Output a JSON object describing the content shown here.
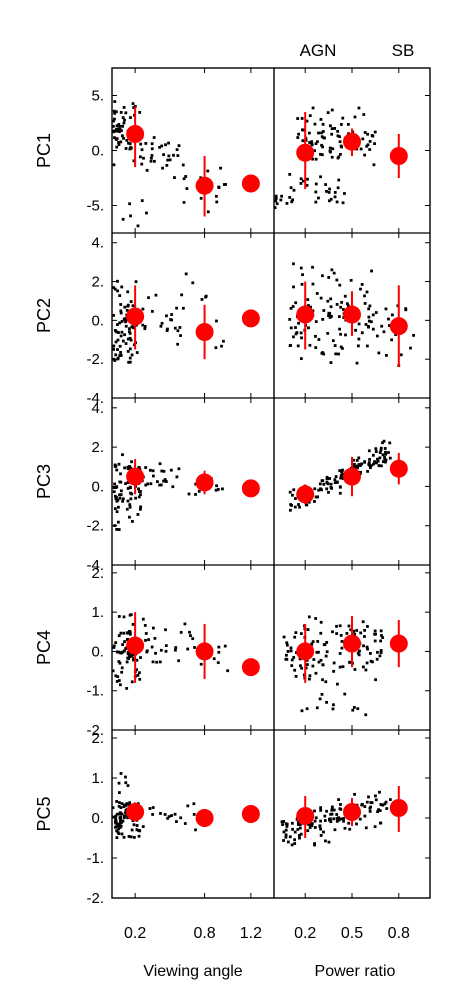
{
  "colors": {
    "points": "#000000",
    "means": "#ff0000",
    "frame": "#000000",
    "background": "#ffffff"
  },
  "column_top_labels": [
    "AGN",
    "SB"
  ],
  "x_labels": [
    "Viewing angle",
    "Power ratio"
  ],
  "chart_data": {
    "type": "scatter",
    "grid": false,
    "columns": [
      {
        "xlabel": "Viewing angle",
        "xlim": [
          0,
          1.4
        ],
        "ticks": [
          0.2,
          0.8,
          1.2
        ],
        "tick_labels": [
          "0.2",
          "0.8",
          "1.2"
        ]
      },
      {
        "xlabel": "Power ratio",
        "xlim": [
          0,
          1.0
        ],
        "ticks": [
          0.2,
          0.5,
          0.8
        ],
        "tick_labels": [
          "0.2",
          "0.5",
          "0.8"
        ]
      }
    ],
    "rows": [
      {
        "ylabel": "PC1",
        "ylim": [
          -7.5,
          7.5
        ],
        "yticks": [
          5,
          0,
          -5
        ],
        "ytick_labels": [
          "5.",
          "0.",
          "-5."
        ],
        "panels": [
          {
            "means": [
              {
                "x": 0.2,
                "y": 1.5,
                "lo": -1.5,
                "hi": 4.0
              },
              {
                "x": 0.8,
                "y": -3.2,
                "lo": -6.0,
                "hi": -0.5
              },
              {
                "x": 1.2,
                "y": -3.0,
                "lo": -3.5,
                "hi": -2.5
              }
            ],
            "scatter": {
              "seed": 11,
              "n": 110,
              "clusters": [
                {
                  "w": 0.55,
                  "x": [
                    0.0,
                    0.25
                  ],
                  "y": [
                    -1.5,
                    5.0
                  ]
                },
                {
                  "w": 0.25,
                  "x": [
                    0.25,
                    0.6
                  ],
                  "y": [
                    -3.0,
                    2.0
                  ]
                },
                {
                  "w": 0.15,
                  "x": [
                    0.6,
                    1.0
                  ],
                  "y": [
                    -6.0,
                    -1.0
                  ]
                },
                {
                  "w": 0.05,
                  "x": [
                    0.05,
                    0.3
                  ],
                  "y": [
                    -7.0,
                    -4.0
                  ]
                }
              ]
            }
          },
          {
            "means": [
              {
                "x": 0.2,
                "y": -0.2,
                "lo": -3.5,
                "hi": 3.5
              },
              {
                "x": 0.5,
                "y": 0.8,
                "lo": -0.5,
                "hi": 2.0
              },
              {
                "x": 0.8,
                "y": -0.5,
                "lo": -2.5,
                "hi": 1.5
              }
            ],
            "scatter": {
              "seed": 12,
              "n": 130,
              "clusters": [
                {
                  "w": 0.7,
                  "x": [
                    0.15,
                    0.65
                  ],
                  "y": [
                    -2.0,
                    4.0
                  ]
                },
                {
                  "w": 0.2,
                  "x": [
                    0.1,
                    0.5
                  ],
                  "y": [
                    -5.0,
                    -2.0
                  ]
                },
                {
                  "w": 0.1,
                  "x": [
                    0.0,
                    0.15
                  ],
                  "y": [
                    -5.5,
                    -4.0
                  ]
                }
              ]
            }
          }
        ]
      },
      {
        "ylabel": "PC2",
        "ylim": [
          -4,
          4.5
        ],
        "yticks": [
          4,
          2,
          0,
          -2,
          -4
        ],
        "ytick_labels": [
          "4.",
          "2.",
          "0.",
          "-2.",
          "-4."
        ],
        "panels": [
          {
            "means": [
              {
                "x": 0.2,
                "y": 0.2,
                "lo": -1.5,
                "hi": 1.8
              },
              {
                "x": 0.8,
                "y": -0.6,
                "lo": -2.0,
                "hi": 0.8
              },
              {
                "x": 1.2,
                "y": 0.1,
                "lo": -0.2,
                "hi": 0.4
              }
            ],
            "scatter": {
              "seed": 21,
              "n": 110,
              "clusters": [
                {
                  "w": 0.7,
                  "x": [
                    0.0,
                    0.22
                  ],
                  "y": [
                    -3.0,
                    2.5
                  ]
                },
                {
                  "w": 0.2,
                  "x": [
                    0.22,
                    0.6
                  ],
                  "y": [
                    -1.5,
                    1.5
                  ]
                },
                {
                  "w": 0.1,
                  "x": [
                    0.6,
                    1.0
                  ],
                  "y": [
                    -2.0,
                    3.0
                  ]
                }
              ]
            }
          },
          {
            "means": [
              {
                "x": 0.2,
                "y": 0.3,
                "lo": -1.5,
                "hi": 2.0
              },
              {
                "x": 0.5,
                "y": 0.3,
                "lo": -0.8,
                "hi": 1.5
              },
              {
                "x": 0.8,
                "y": -0.3,
                "lo": -2.4,
                "hi": 1.8
              }
            ],
            "scatter": {
              "seed": 22,
              "n": 130,
              "clusters": [
                {
                  "w": 0.85,
                  "x": [
                    0.1,
                    0.65
                  ],
                  "y": [
                    -2.5,
                    3.0
                  ]
                },
                {
                  "w": 0.15,
                  "x": [
                    0.65,
                    0.9
                  ],
                  "y": [
                    -2.5,
                    1.5
                  ]
                }
              ]
            }
          }
        ]
      },
      {
        "ylabel": "PC3",
        "ylim": [
          -4,
          4.5
        ],
        "yticks": [
          4,
          2,
          0,
          -2,
          -4
        ],
        "ytick_labels": [
          "4.",
          "2.",
          "0.",
          "-2.",
          "-4."
        ],
        "panels": [
          {
            "means": [
              {
                "x": 0.2,
                "y": 0.5,
                "lo": -0.4,
                "hi": 1.4
              },
              {
                "x": 0.8,
                "y": 0.2,
                "lo": -0.4,
                "hi": 0.8
              },
              {
                "x": 1.2,
                "y": -0.1,
                "lo": -0.3,
                "hi": 0.1
              }
            ],
            "scatter": {
              "seed": 31,
              "n": 110,
              "clusters": [
                {
                  "w": 0.7,
                  "x": [
                    0.0,
                    0.25
                  ],
                  "y": [
                    -2.5,
                    2.0
                  ]
                },
                {
                  "w": 0.2,
                  "x": [
                    0.25,
                    0.6
                  ],
                  "y": [
                    -0.5,
                    1.5
                  ]
                },
                {
                  "w": 0.1,
                  "x": [
                    0.6,
                    1.0
                  ],
                  "y": [
                    -1.5,
                    1.0
                  ]
                }
              ]
            }
          },
          {
            "means": [
              {
                "x": 0.2,
                "y": -0.4,
                "lo": -0.9,
                "hi": 0.1
              },
              {
                "x": 0.5,
                "y": 0.5,
                "lo": -0.5,
                "hi": 1.5
              },
              {
                "x": 0.8,
                "y": 0.9,
                "lo": 0.1,
                "hi": 1.7
              }
            ],
            "scatter": {
              "seed": 32,
              "n": 130,
              "trend": {
                "x": [
                  0.1,
                  0.75
                ],
                "y": [
                  -1.0,
                  1.9
                ],
                "spread": 0.6
              }
            }
          }
        ]
      },
      {
        "ylabel": "PC4",
        "ylim": [
          -2,
          2.2
        ],
        "yticks": [
          2,
          1,
          0,
          -1,
          -2
        ],
        "ytick_labels": [
          "2.",
          "1.",
          "0.",
          "-1.",
          "-2."
        ],
        "panels": [
          {
            "means": [
              {
                "x": 0.2,
                "y": 0.15,
                "lo": -0.8,
                "hi": 1.0
              },
              {
                "x": 0.8,
                "y": 0.0,
                "lo": -0.7,
                "hi": 0.7
              },
              {
                "x": 1.2,
                "y": -0.4,
                "lo": -0.5,
                "hi": -0.3
              }
            ],
            "scatter": {
              "seed": 41,
              "n": 110,
              "clusters": [
                {
                  "w": 0.65,
                  "x": [
                    0.0,
                    0.25
                  ],
                  "y": [
                    -1.0,
                    1.0
                  ]
                },
                {
                  "w": 0.25,
                  "x": [
                    0.25,
                    0.7
                  ],
                  "y": [
                    -0.6,
                    1.0
                  ]
                },
                {
                  "w": 0.1,
                  "x": [
                    0.7,
                    1.0
                  ],
                  "y": [
                    -1.0,
                    0.5
                  ]
                }
              ]
            }
          },
          {
            "means": [
              {
                "x": 0.2,
                "y": 0.0,
                "lo": -0.8,
                "hi": 0.7
              },
              {
                "x": 0.5,
                "y": 0.2,
                "lo": -0.4,
                "hi": 0.9
              },
              {
                "x": 0.8,
                "y": 0.2,
                "lo": -0.4,
                "hi": 0.8
              }
            ],
            "scatter": {
              "seed": 42,
              "n": 130,
              "clusters": [
                {
                  "w": 0.9,
                  "x": [
                    0.05,
                    0.7
                  ],
                  "y": [
                    -1.0,
                    1.0
                  ]
                },
                {
                  "w": 0.1,
                  "x": [
                    0.1,
                    0.6
                  ],
                  "y": [
                    -1.8,
                    -1.0
                  ]
                }
              ]
            }
          }
        ]
      },
      {
        "ylabel": "PC5",
        "ylim": [
          -2,
          2.2
        ],
        "yticks": [
          2,
          1,
          0,
          -1,
          -2
        ],
        "ytick_labels": [
          "2.",
          "1.",
          "0.",
          "-1.",
          "-2."
        ],
        "panels": [
          {
            "means": [
              {
                "x": 0.2,
                "y": 0.15,
                "lo": -0.05,
                "hi": 0.35
              },
              {
                "x": 0.8,
                "y": 0.0,
                "lo": -0.15,
                "hi": 0.15
              },
              {
                "x": 1.2,
                "y": 0.1,
                "lo": -0.05,
                "hi": 0.25
              }
            ],
            "scatter": {
              "seed": 51,
              "n": 110,
              "clusters": [
                {
                  "w": 0.8,
                  "x": [
                    0.0,
                    0.25
                  ],
                  "y": [
                    -0.6,
                    0.6
                  ]
                },
                {
                  "w": 0.15,
                  "x": [
                    0.25,
                    0.8
                  ],
                  "y": [
                    -0.4,
                    0.5
                  ]
                },
                {
                  "w": 0.05,
                  "x": [
                    0.05,
                    0.2
                  ],
                  "y": [
                    0.6,
                    1.2
                  ]
                }
              ]
            }
          },
          {
            "means": [
              {
                "x": 0.2,
                "y": 0.05,
                "lo": -0.5,
                "hi": 0.55
              },
              {
                "x": 0.5,
                "y": 0.15,
                "lo": -0.2,
                "hi": 0.5
              },
              {
                "x": 0.8,
                "y": 0.25,
                "lo": -0.35,
                "hi": 0.8
              }
            ],
            "scatter": {
              "seed": 52,
              "n": 130,
              "trend": {
                "x": [
                  0.05,
                  0.75
                ],
                "y": [
                  -0.35,
                  0.35
                ],
                "spread": 0.45
              }
            }
          }
        ]
      }
    ]
  }
}
